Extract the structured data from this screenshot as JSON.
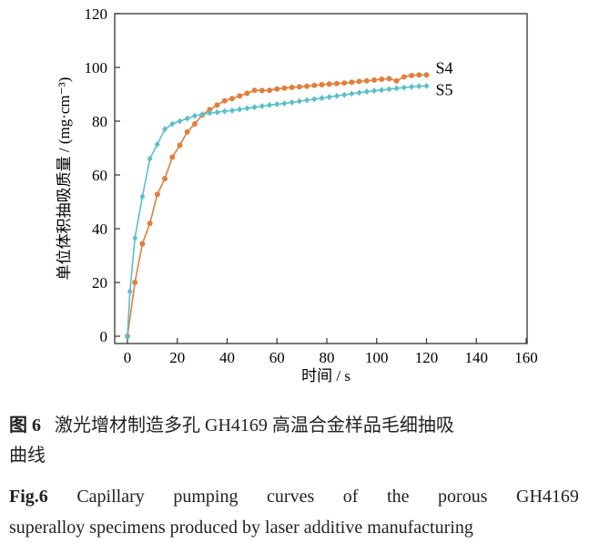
{
  "chart_data": {
    "type": "line",
    "xlabel": "时间 / s",
    "ylabel": "单位体积抽吸质量 / (mg·cm⁻³)",
    "xlim": [
      0,
      160
    ],
    "ylim": [
      0,
      120
    ],
    "xticks": [
      0,
      20,
      40,
      60,
      80,
      100,
      120,
      140,
      160
    ],
    "yticks": [
      0,
      20,
      40,
      60,
      80,
      100,
      120
    ],
    "grid": false,
    "legend": "series labels at right end of lines",
    "series": [
      {
        "name": "S4",
        "color": "#e07f3e",
        "marker": "circle",
        "x": [
          0,
          3,
          6,
          9,
          12,
          15,
          18,
          21,
          24,
          27,
          30,
          33,
          36,
          39,
          42,
          45,
          48,
          51,
          54,
          57,
          60,
          63,
          66,
          69,
          72,
          75,
          78,
          81,
          84,
          87,
          90,
          93,
          96,
          99,
          102,
          105,
          108,
          111,
          114,
          117,
          120
        ],
        "y": [
          0,
          20,
          34.4,
          42,
          52.8,
          58.6,
          66.6,
          71,
          76,
          79,
          82.3,
          84.3,
          86,
          87.6,
          88.4,
          89.4,
          90.4,
          91.5,
          91.4,
          91.5,
          92,
          92.3,
          92.6,
          92.8,
          93,
          93.3,
          93.6,
          93.8,
          94,
          94.2,
          94.5,
          94.8,
          95,
          95.3,
          95.6,
          95.8,
          95,
          96.5,
          97,
          97.2,
          97.2
        ]
      },
      {
        "name": "S5",
        "color": "#5bbfc9",
        "marker": "diamond",
        "x": [
          0,
          1,
          3,
          6,
          9,
          12,
          15,
          18,
          21,
          24,
          27,
          30,
          33,
          36,
          39,
          42,
          45,
          48,
          51,
          54,
          57,
          60,
          63,
          66,
          69,
          72,
          75,
          78,
          81,
          84,
          87,
          90,
          93,
          96,
          99,
          102,
          105,
          108,
          111,
          114,
          117,
          120
        ],
        "y": [
          0,
          16.6,
          36.5,
          52,
          66,
          71.4,
          77,
          79,
          80,
          81,
          82,
          82.5,
          83,
          83.3,
          83.7,
          84,
          84.4,
          84.8,
          85.2,
          85.6,
          86,
          86.3,
          86.6,
          87,
          87.4,
          87.8,
          88.2,
          88.6,
          89,
          89.4,
          89.8,
          90.2,
          90.6,
          91,
          91.3,
          91.6,
          91.9,
          92.2,
          92.5,
          92.8,
          93,
          93.1
        ]
      }
    ]
  },
  "caption": {
    "cn_label": "图 6",
    "cn_text": "激光增材制造多孔 GH4169 高温合金样品毛细抽吸",
    "cn_text2": "曲线",
    "en_label": "Fig.6",
    "en_words": [
      "Capillary",
      "pumping",
      "curves",
      "of",
      "the",
      "porous",
      "GH4169"
    ],
    "en_line2": "superalloy specimens produced by laser additive manufacturing"
  }
}
